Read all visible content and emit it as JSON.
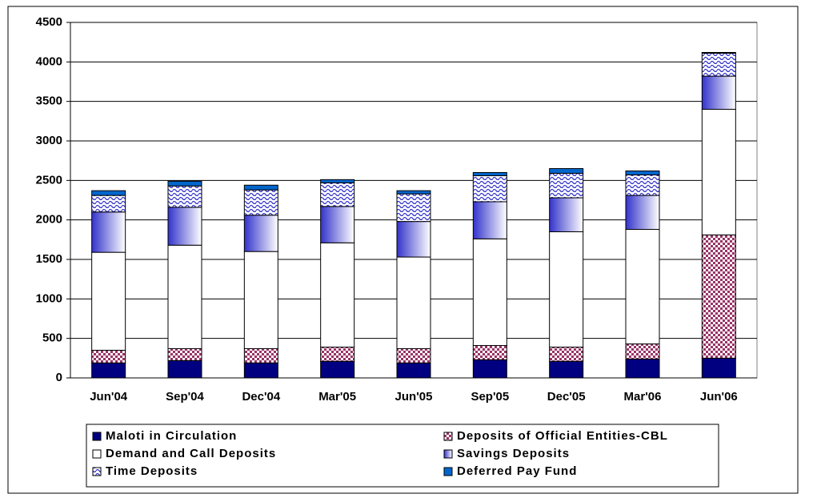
{
  "chart_data": {
    "type": "stacked-bar",
    "categories": [
      "Jun'04",
      "Sep'04",
      "Dec'04",
      "Mar'05",
      "Jun'05",
      "Sep'05",
      "Dec'05",
      "Mar'06",
      "Jun'06"
    ],
    "ylim": [
      0,
      4500
    ],
    "yticks": [
      0,
      500,
      1000,
      1500,
      2000,
      2500,
      3000,
      3500,
      4000,
      4500
    ],
    "grid": true,
    "series": [
      {
        "name": "Maloti in Circulation",
        "color": "#000080",
        "values": [
          190,
          220,
          190,
          210,
          190,
          230,
          210,
          240,
          250
        ]
      },
      {
        "name": "Deposits of Official Entities-CBL",
        "color": "#993366",
        "values": [
          160,
          150,
          180,
          180,
          180,
          180,
          180,
          190,
          1560
        ]
      },
      {
        "name": "Demand and Call Deposits",
        "color": "#ffffff",
        "values": [
          1240,
          1310,
          1230,
          1320,
          1160,
          1350,
          1460,
          1450,
          1590
        ]
      },
      {
        "name": "Savings Deposits",
        "color": "#3333cc",
        "values": [
          510,
          480,
          460,
          460,
          450,
          470,
          430,
          430,
          420
        ]
      },
      {
        "name": "Time Deposits",
        "color": "#3333cc",
        "values": [
          210,
          270,
          320,
          300,
          350,
          330,
          310,
          260,
          290
        ]
      },
      {
        "name": "Deferred Pay Fund",
        "color": "#0066cc",
        "values": [
          60,
          60,
          60,
          40,
          40,
          40,
          60,
          50,
          10
        ]
      }
    ]
  }
}
